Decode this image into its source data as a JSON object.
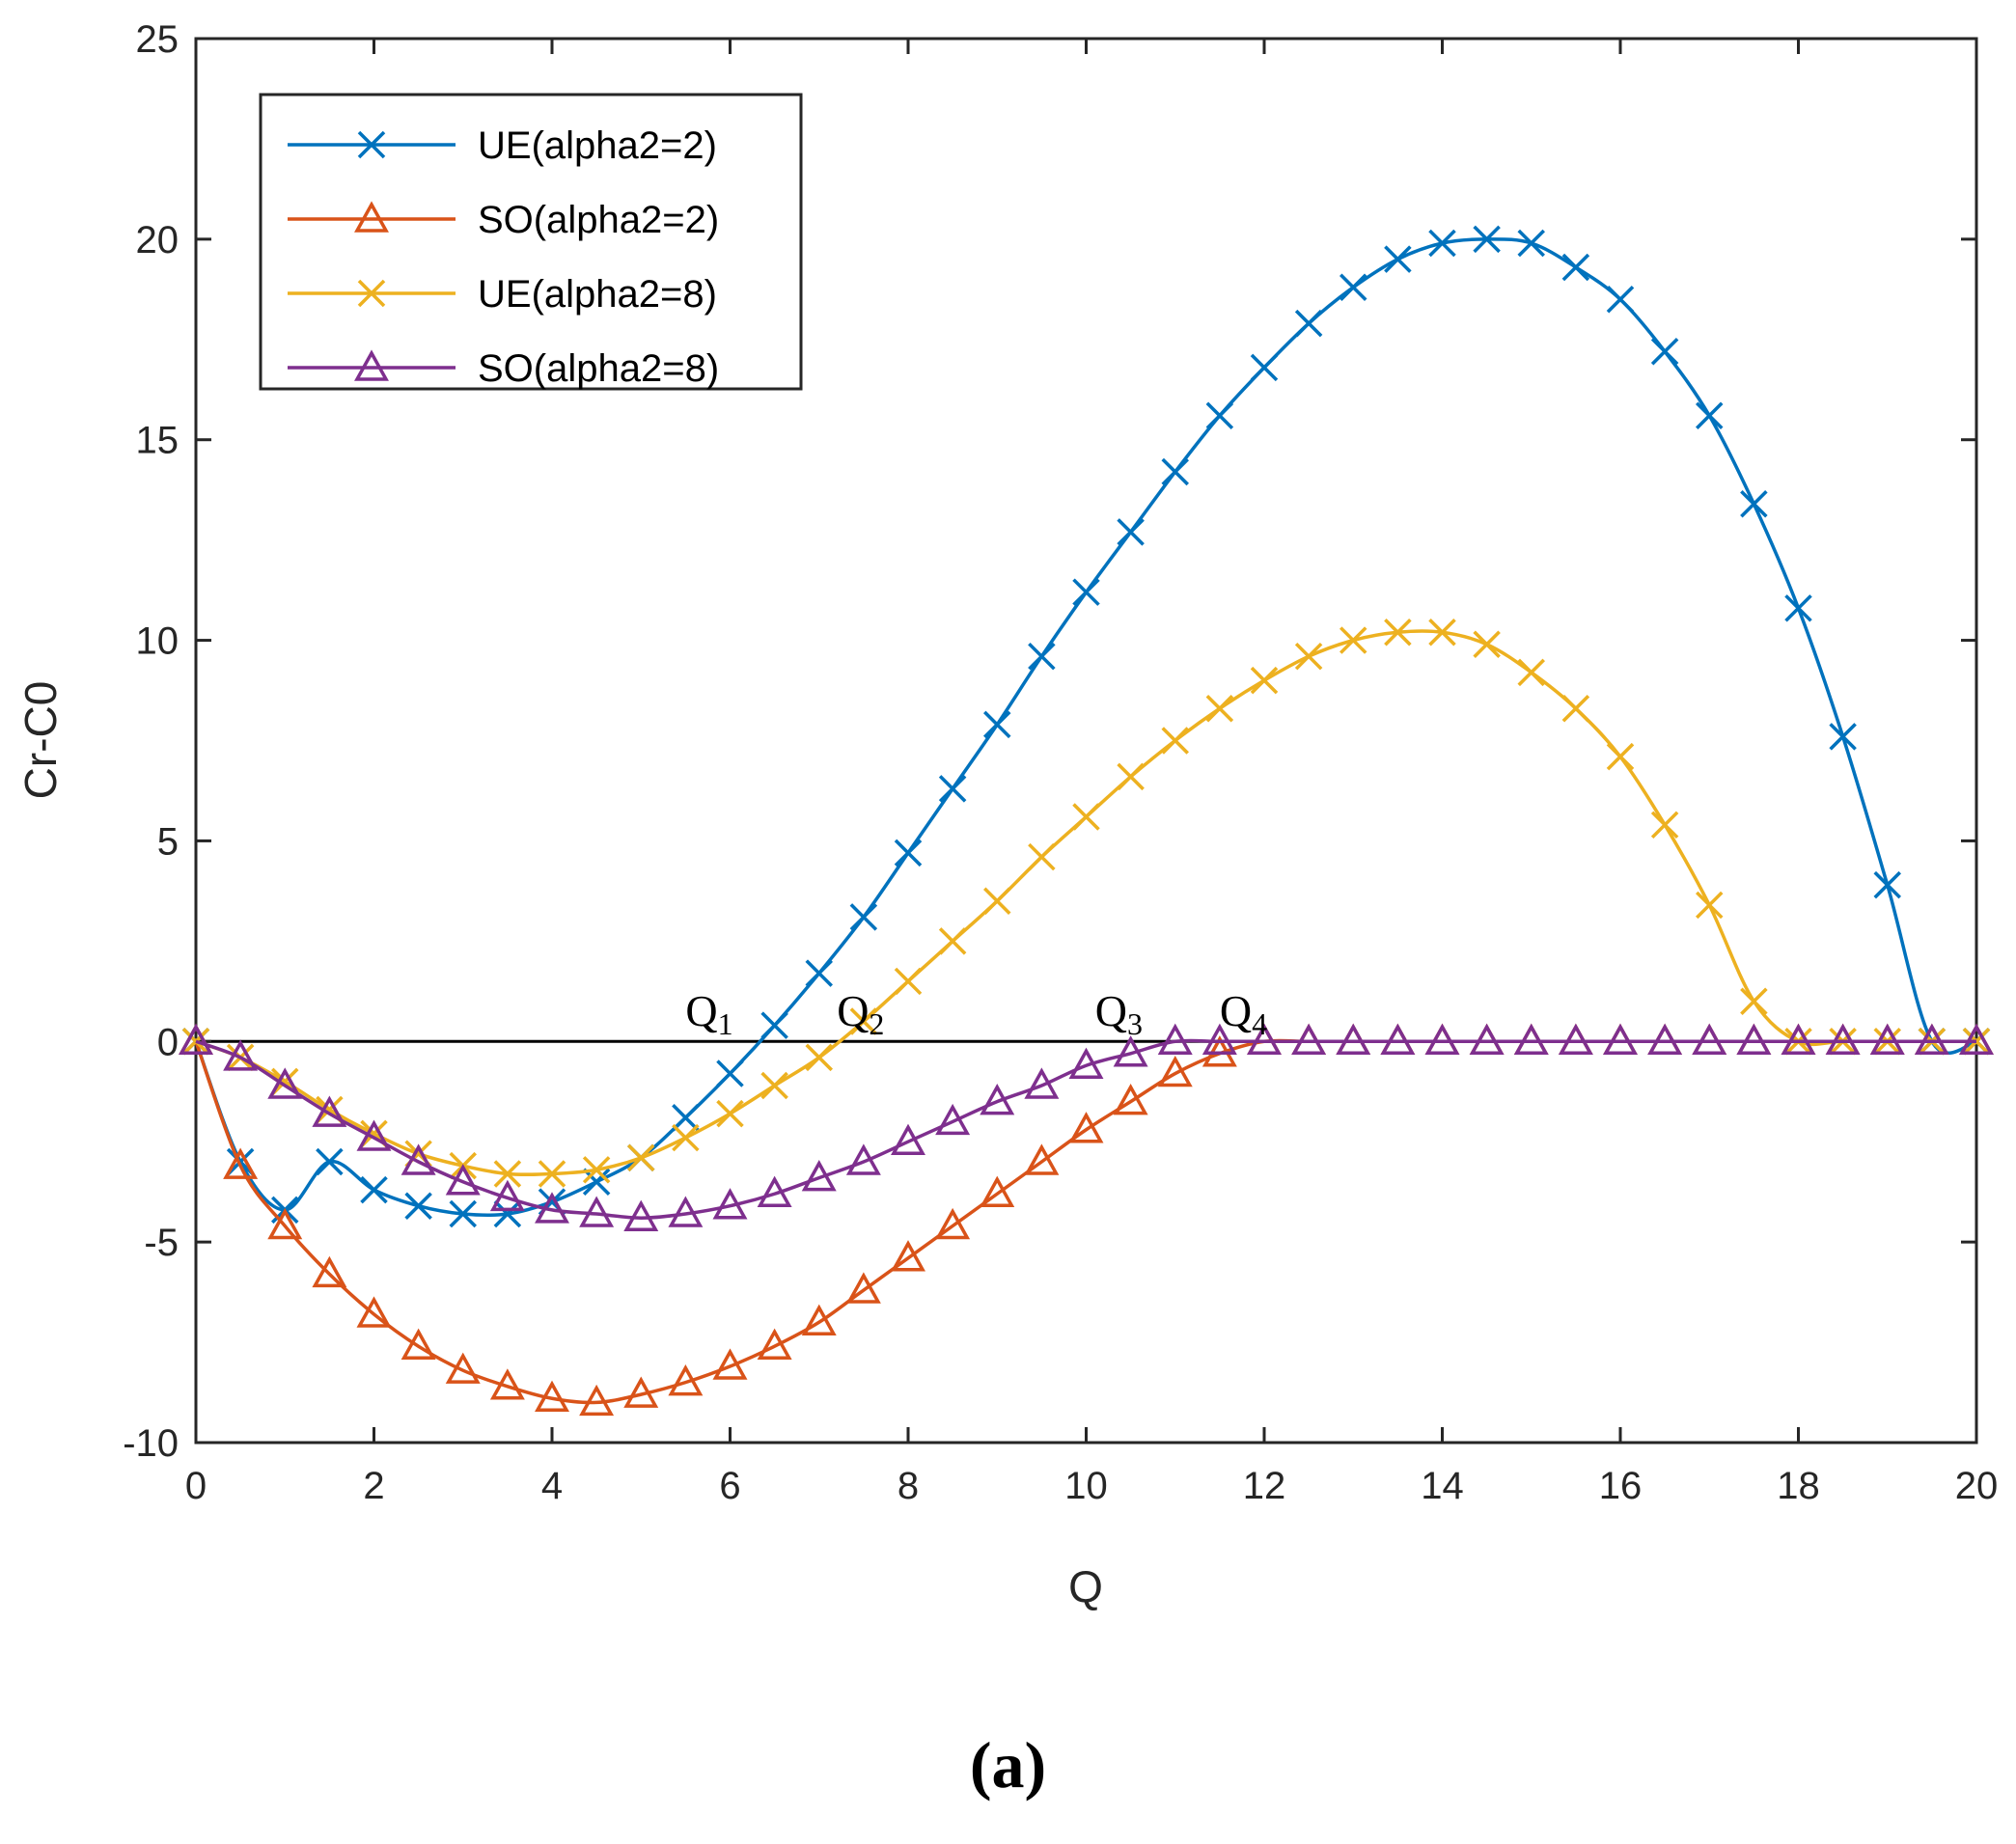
{
  "chart_data": {
    "type": "line",
    "title": "",
    "xlabel": "Q",
    "ylabel": "Cr-C0",
    "xlim": [
      0,
      20
    ],
    "ylim": [
      -10,
      25
    ],
    "xticks": [
      0,
      2,
      4,
      6,
      8,
      10,
      12,
      14,
      16,
      18,
      20
    ],
    "yticks": [
      -10,
      -5,
      0,
      5,
      10,
      15,
      20,
      25
    ],
    "xtick_labels": [
      "0",
      "2",
      "4",
      "6",
      "8",
      "10",
      "12",
      "14",
      "16",
      "18",
      "20"
    ],
    "ytick_labels": [
      "-10",
      "-5",
      "0",
      "5",
      "10",
      "15",
      "20",
      "25"
    ],
    "grid": false,
    "legend_position": "top-left",
    "x": [
      0,
      0.5,
      1,
      1.5,
      2,
      2.5,
      3,
      3.5,
      4,
      4.5,
      5,
      5.5,
      6,
      6.5,
      7,
      7.5,
      8,
      8.5,
      9,
      9.5,
      10,
      10.5,
      11,
      11.5,
      12,
      12.5,
      13,
      13.5,
      14,
      14.5,
      15,
      15.5,
      16,
      16.5,
      17,
      17.5,
      18,
      18.5,
      19,
      19.5,
      20
    ],
    "series": [
      {
        "name": "UE(alpha2=2)",
        "color": "#0072BD",
        "marker": "x",
        "values": [
          0,
          -3.0,
          -4.2,
          -3.0,
          -3.7,
          -4.1,
          -4.3,
          -4.3,
          -4.0,
          -3.5,
          -2.9,
          -1.9,
          -0.8,
          0.4,
          1.7,
          3.1,
          4.7,
          6.3,
          7.9,
          9.6,
          11.2,
          12.7,
          14.2,
          15.6,
          16.8,
          17.9,
          18.8,
          19.5,
          19.9,
          20.0,
          19.9,
          19.3,
          18.5,
          17.2,
          15.6,
          13.4,
          10.8,
          7.6,
          3.9,
          0,
          0
        ]
      },
      {
        "name": "SO(alpha2=2)",
        "color": "#D95319",
        "marker": "triangle",
        "values": [
          0,
          -3.1,
          -4.6,
          -5.8,
          -6.8,
          -7.6,
          -8.2,
          -8.6,
          -8.9,
          -9.0,
          -8.8,
          -8.5,
          -8.1,
          -7.6,
          -7.0,
          -6.2,
          -5.4,
          -4.6,
          -3.8,
          -3.0,
          -2.2,
          -1.5,
          -0.8,
          -0.3,
          0,
          0,
          0,
          0,
          0,
          0,
          0,
          0,
          0,
          0,
          0,
          0,
          0,
          0,
          0,
          0,
          0
        ]
      },
      {
        "name": "UE(alpha2=8)",
        "color": "#EDB120",
        "marker": "x",
        "values": [
          0,
          -0.4,
          -1.0,
          -1.7,
          -2.3,
          -2.8,
          -3.1,
          -3.3,
          -3.3,
          -3.2,
          -2.9,
          -2.4,
          -1.8,
          -1.1,
          -0.4,
          0.5,
          1.5,
          2.5,
          3.5,
          4.6,
          5.6,
          6.6,
          7.5,
          8.3,
          9.0,
          9.6,
          10.0,
          10.2,
          10.2,
          9.9,
          9.2,
          8.3,
          7.1,
          5.4,
          3.4,
          1.0,
          0,
          0,
          0,
          0,
          0
        ]
      },
      {
        "name": "SO(alpha2=8)",
        "color": "#7E2F8E",
        "marker": "triangle",
        "values": [
          0,
          -0.4,
          -1.1,
          -1.8,
          -2.4,
          -3.0,
          -3.5,
          -3.9,
          -4.2,
          -4.3,
          -4.4,
          -4.3,
          -4.1,
          -3.8,
          -3.4,
          -3.0,
          -2.5,
          -2.0,
          -1.5,
          -1.1,
          -0.6,
          -0.3,
          0,
          0,
          0,
          0,
          0,
          0,
          0,
          0,
          0,
          0,
          0,
          0,
          0,
          0,
          0,
          0,
          0,
          0,
          0
        ]
      }
    ],
    "reference_line": {
      "y": 0,
      "color": "#000000"
    },
    "annotations": [
      {
        "base": "Q",
        "sub": "1",
        "x": 5.5,
        "y": 0.2
      },
      {
        "base": "Q",
        "sub": "2",
        "x": 7.2,
        "y": 0.2
      },
      {
        "base": "Q",
        "sub": "3",
        "x": 10.1,
        "y": 0.2
      },
      {
        "base": "Q",
        "sub": "4",
        "x": 11.5,
        "y": 0.2
      }
    ]
  },
  "caption": "(a)"
}
